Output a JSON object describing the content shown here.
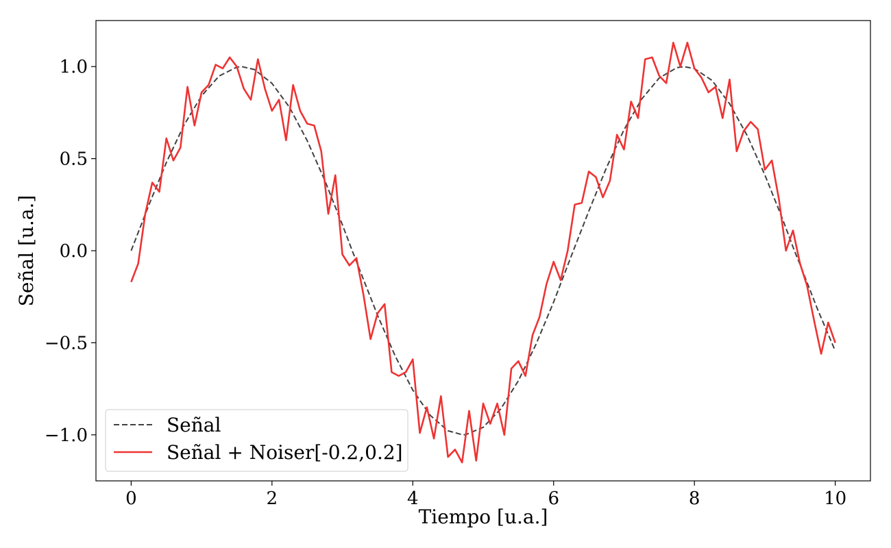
{
  "chart_data": {
    "type": "line",
    "title": "",
    "xlabel": "Tiempo [u.a.]",
    "ylabel": "Señal [u.a.]",
    "xlim": [
      -0.5,
      10.5
    ],
    "ylim": [
      -1.25,
      1.25
    ],
    "xticks": [
      0,
      2,
      4,
      6,
      8,
      10
    ],
    "xtick_labels": [
      "0",
      "2",
      "4",
      "6",
      "8",
      "10"
    ],
    "yticks": [
      -1.0,
      -0.5,
      0.0,
      0.5,
      1.0
    ],
    "ytick_labels": [
      "−1.0",
      "−0.5",
      "0.0",
      "0.5",
      "1.0"
    ],
    "grid": false,
    "legend_position": "lower-left",
    "series": [
      {
        "name": "Señal",
        "color": "#404040",
        "style": "dashed",
        "x": [
          0.0,
          0.25,
          0.5,
          0.75,
          1.0,
          1.25,
          1.5,
          1.57,
          1.75,
          2.0,
          2.25,
          2.5,
          2.75,
          3.0,
          3.14,
          3.25,
          3.5,
          3.75,
          4.0,
          4.25,
          4.5,
          4.71,
          4.75,
          5.0,
          5.25,
          5.5,
          5.75,
          6.0,
          6.28,
          6.5,
          6.75,
          7.0,
          7.25,
          7.5,
          7.75,
          7.85,
          8.0,
          8.25,
          8.5,
          8.75,
          9.0,
          9.25,
          9.42,
          9.5,
          9.75,
          10.0
        ],
        "y": [
          0.0,
          0.247,
          0.479,
          0.682,
          0.841,
          0.949,
          0.997,
          1.0,
          0.984,
          0.909,
          0.778,
          0.598,
          0.382,
          0.141,
          0.0,
          -0.108,
          -0.351,
          -0.572,
          -0.757,
          -0.895,
          -0.978,
          -1.0,
          -0.999,
          -0.959,
          -0.859,
          -0.706,
          -0.508,
          -0.279,
          0.0,
          0.215,
          0.45,
          0.657,
          0.823,
          0.938,
          0.994,
          1.0,
          0.989,
          0.925,
          0.798,
          0.625,
          0.412,
          0.174,
          0.0,
          -0.075,
          -0.319,
          -0.544
        ]
      },
      {
        "name": "Señal + Noiser[-0.2,0.2]",
        "color": "#ee3333",
        "style": "solid",
        "x": [
          0.0,
          0.1,
          0.2,
          0.3,
          0.4,
          0.5,
          0.6,
          0.7,
          0.8,
          0.9,
          1.0,
          1.1,
          1.2,
          1.3,
          1.4,
          1.5,
          1.6,
          1.7,
          1.8,
          1.9,
          2.0,
          2.1,
          2.2,
          2.3,
          2.4,
          2.5,
          2.6,
          2.7,
          2.8,
          2.9,
          3.0,
          3.1,
          3.2,
          3.3,
          3.4,
          3.5,
          3.6,
          3.7,
          3.8,
          3.9,
          4.0,
          4.1,
          4.2,
          4.3,
          4.4,
          4.5,
          4.6,
          4.7,
          4.8,
          4.9,
          5.0,
          5.1,
          5.2,
          5.3,
          5.4,
          5.5,
          5.6,
          5.7,
          5.8,
          5.9,
          6.0,
          6.1,
          6.2,
          6.3,
          6.4,
          6.5,
          6.6,
          6.7,
          6.8,
          6.9,
          7.0,
          7.1,
          7.2,
          7.3,
          7.4,
          7.5,
          7.6,
          7.7,
          7.8,
          7.9,
          8.0,
          8.1,
          8.2,
          8.3,
          8.4,
          8.5,
          8.6,
          8.7,
          8.8,
          8.9,
          9.0,
          9.1,
          9.2,
          9.3,
          9.4,
          9.5,
          9.6,
          9.7,
          9.8,
          9.9,
          10.0
        ],
        "y": [
          -0.17,
          -0.07,
          0.2,
          0.37,
          0.32,
          0.61,
          0.49,
          0.56,
          0.89,
          0.68,
          0.86,
          0.9,
          1.01,
          0.99,
          1.05,
          1.0,
          0.88,
          0.82,
          1.04,
          0.88,
          0.76,
          0.82,
          0.6,
          0.9,
          0.76,
          0.69,
          0.68,
          0.54,
          0.2,
          0.41,
          -0.02,
          -0.08,
          -0.04,
          -0.24,
          -0.48,
          -0.34,
          -0.29,
          -0.66,
          -0.68,
          -0.66,
          -0.59,
          -0.99,
          -0.85,
          -1.02,
          -0.79,
          -1.12,
          -1.08,
          -1.15,
          -0.87,
          -1.14,
          -0.83,
          -0.94,
          -0.83,
          -1.0,
          -0.64,
          -0.6,
          -0.68,
          -0.46,
          -0.36,
          -0.18,
          -0.06,
          -0.16,
          0.0,
          0.25,
          0.26,
          0.43,
          0.4,
          0.29,
          0.38,
          0.63,
          0.55,
          0.81,
          0.72,
          1.04,
          1.05,
          0.95,
          0.91,
          1.13,
          1.0,
          1.13,
          0.99,
          0.94,
          0.86,
          0.89,
          0.72,
          0.93,
          0.54,
          0.65,
          0.7,
          0.66,
          0.44,
          0.49,
          0.28,
          0.0,
          0.11,
          -0.07,
          -0.19,
          -0.38,
          -0.56,
          -0.39,
          -0.5
        ]
      }
    ]
  }
}
